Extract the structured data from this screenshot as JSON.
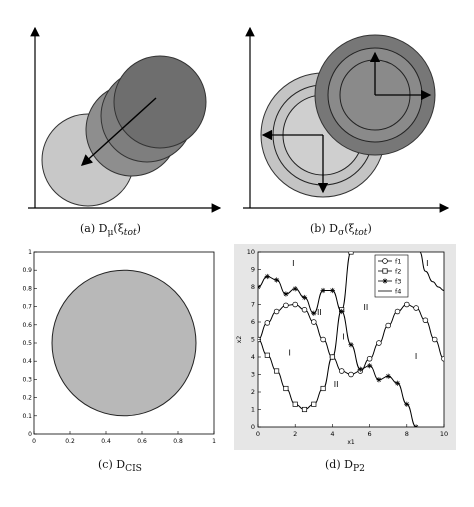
{
  "figure": {
    "panels": [
      {
        "id": "a",
        "caption_prefix": "(a) D",
        "caption_sub": "μ",
        "caption_suffix": "(ξ",
        "caption_sub2": "tot",
        "caption_end": ")"
      },
      {
        "id": "b",
        "caption_prefix": "(b) D",
        "caption_sub": "σ",
        "caption_suffix": "(ξ",
        "caption_sub2": "tot",
        "caption_end": ")"
      },
      {
        "id": "c",
        "caption_prefix": "(c) D",
        "caption_sub": "CIS"
      },
      {
        "id": "d",
        "caption_prefix": "(d) D",
        "caption_sub": "P2"
      }
    ]
  },
  "chart_data": [
    {
      "type": "scatter",
      "panel": "c",
      "xlim": [
        0,
        1
      ],
      "ylim": [
        0,
        1
      ],
      "x_ticks": [
        "0",
        "0.2",
        "0.4",
        "0.6",
        "0.8",
        "1"
      ],
      "y_ticks": [
        "0",
        "0.1",
        "0.2",
        "0.3",
        "0.4",
        "0.5",
        "0.6",
        "0.7",
        "0.8",
        "0.9",
        "1"
      ],
      "region": {
        "shape": "circle",
        "center": [
          0.5,
          0.5
        ],
        "radius": 0.4
      },
      "colors": {
        "fill": "#b8b8b8",
        "edge": "#222222"
      }
    },
    {
      "type": "line",
      "panel": "d",
      "xlabel": "x1",
      "ylabel": "x2",
      "xlim": [
        0,
        10
      ],
      "ylim": [
        0,
        10
      ],
      "x_ticks": [
        "0",
        "2",
        "4",
        "6",
        "8",
        "10"
      ],
      "y_ticks": [
        "0",
        "1",
        "2",
        "3",
        "4",
        "5",
        "6",
        "7",
        "8",
        "9",
        "10"
      ],
      "grid": false,
      "legend_placement": "top-right",
      "region_labels": [
        {
          "text": "I",
          "x": 1.9,
          "y": 9.2
        },
        {
          "text": "I",
          "x": 9.1,
          "y": 9.2
        },
        {
          "text": "II",
          "x": 3.3,
          "y": 6.4
        },
        {
          "text": "II",
          "x": 5.8,
          "y": 6.7
        },
        {
          "text": "I",
          "x": 4.6,
          "y": 5.0
        },
        {
          "text": "I",
          "x": 1.7,
          "y": 4.1
        },
        {
          "text": "II",
          "x": 4.2,
          "y": 2.3
        },
        {
          "text": "I",
          "x": 8.5,
          "y": 3.9
        }
      ],
      "series": [
        {
          "name": "f1",
          "marker": "circle",
          "x": [
            0,
            0.5,
            1,
            1.5,
            2,
            2.5,
            3,
            3.5,
            4,
            4.5,
            5,
            5.5,
            6,
            6.5,
            7,
            7.5,
            8,
            8.5,
            9,
            9.5,
            10
          ],
          "y": [
            5.0,
            5.95,
            6.6,
            6.95,
            7.0,
            6.7,
            6.0,
            5.0,
            4.0,
            3.2,
            3.0,
            3.2,
            3.9,
            4.8,
            5.8,
            6.6,
            7.0,
            6.8,
            6.1,
            5.0,
            3.9
          ]
        },
        {
          "name": "f2",
          "marker": "square",
          "x": [
            0,
            0.5,
            1,
            1.5,
            2,
            2.5,
            3,
            3.5,
            4,
            4.5,
            5
          ],
          "y": [
            5.0,
            4.1,
            3.2,
            2.2,
            1.3,
            1.0,
            1.3,
            2.2,
            4.0,
            6.7,
            10.0
          ]
        },
        {
          "name": "f3",
          "marker": "star",
          "x": [
            0,
            0.5,
            1,
            1.5,
            2,
            2.5,
            3,
            3.5,
            4,
            4.5,
            5,
            5.5,
            6,
            6.5,
            7,
            7.5,
            8,
            8.5
          ],
          "y": [
            8.0,
            8.6,
            8.4,
            7.6,
            7.9,
            7.4,
            6.5,
            7.8,
            7.8,
            6.6,
            4.7,
            3.3,
            3.5,
            2.7,
            2.9,
            2.5,
            1.3,
            0.0
          ]
        },
        {
          "name": "f4",
          "marker": "none",
          "x": [
            8.7,
            9.0,
            9.4,
            9.7,
            10.0
          ],
          "y": [
            10.0,
            8.9,
            8.3,
            8.0,
            7.8
          ]
        }
      ]
    }
  ]
}
